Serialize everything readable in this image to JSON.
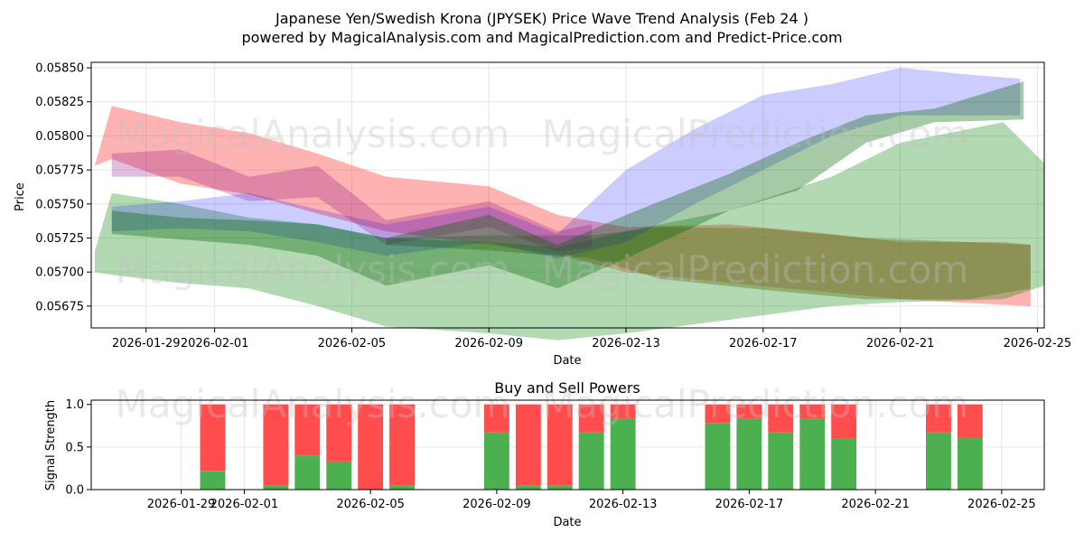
{
  "title": "Japanese Yen/Swedish Krona (JPYSEK) Price Wave Trend Analysis (Feb 24 )",
  "subtitle": "powered by MagicalAnalysis.com and MagicalPrediction.com and Predict-Price.com",
  "watermarks": [
    "MagicalAnalysis.com",
    "MagicalPrediction.com"
  ],
  "colors": {
    "red": "#ff0000",
    "green": "#008000",
    "blue": "#0000ff",
    "purple": "#800080",
    "brown": "#8b7a3a",
    "buy": "#4caf50",
    "sell": "#ff4d4d"
  },
  "chart_data": [
    {
      "type": "area",
      "name": "price-wave",
      "title": "",
      "xlabel": "Date",
      "ylabel": "Price",
      "xlim": [
        "2026-01-27.4",
        "2026-02-25.2"
      ],
      "ylim": [
        0.05659,
        0.05854
      ],
      "yticks": [
        0.05675,
        0.057,
        0.05725,
        0.0575,
        0.05775,
        0.058,
        0.05825,
        0.0585
      ],
      "ytick_labels": [
        "0.05675",
        "0.05700",
        "0.05725",
        "0.05750",
        "0.05775",
        "0.05800",
        "0.05825",
        "0.05850"
      ],
      "xticks": [
        "2026-01-29",
        "2026-02-01",
        "2026-02-05",
        "2026-02-09",
        "2026-02-13",
        "2026-02-17",
        "2026-02-21",
        "2026-02-25"
      ],
      "grid": true,
      "series": [
        {
          "name": "red-wave",
          "color": "#ff0000",
          "opacity": 0.3,
          "x": [
            "2026-01-27.5",
            "2026-01-28",
            "2026-01-30",
            "2026-02-02",
            "2026-02-04",
            "2026-02-06",
            "2026-02-09",
            "2026-02-11",
            "2026-02-13",
            "2026-02-16",
            "2026-02-19",
            "2026-02-21",
            "2026-02-24",
            "2026-02-24.8"
          ],
          "upper": [
            0.05778,
            0.05822,
            0.0581,
            0.05802,
            0.05787,
            0.0577,
            0.05763,
            0.05742,
            0.05733,
            0.05735,
            0.05728,
            0.05722,
            0.05722,
            0.0572
          ],
          "lower": [
            0.05778,
            0.05783,
            0.05765,
            0.05757,
            0.05743,
            0.0573,
            0.0572,
            0.05713,
            0.057,
            0.05692,
            0.05685,
            0.0568,
            0.05676,
            0.05675
          ]
        },
        {
          "name": "brown-band",
          "color": "#8b7a3a",
          "opacity": 0.45,
          "x": [
            "2026-02-06",
            "2026-02-09",
            "2026-02-12",
            "2026-02-14",
            "2026-02-17",
            "2026-02-20",
            "2026-02-23",
            "2026-02-24.8"
          ],
          "upper": [
            0.05725,
            0.05727,
            0.05727,
            0.05733,
            0.05732,
            0.05725,
            0.05722,
            0.0572
          ],
          "lower": [
            0.0572,
            0.05716,
            0.0571,
            0.05695,
            0.05687,
            0.0568,
            0.0568,
            0.05688
          ]
        },
        {
          "name": "green-wave",
          "color": "#008000",
          "opacity": 0.3,
          "x": [
            "2026-01-27.5",
            "2026-01-28",
            "2026-01-30",
            "2026-02-02",
            "2026-02-04",
            "2026-02-06",
            "2026-02-09",
            "2026-02-11",
            "2026-02-13",
            "2026-02-16",
            "2026-02-19",
            "2026-02-21",
            "2026-02-24",
            "2026-02-25.2"
          ],
          "upper": [
            0.05715,
            0.05758,
            0.0575,
            0.0574,
            0.05735,
            0.05725,
            0.05722,
            0.05718,
            0.0573,
            0.05745,
            0.0577,
            0.05795,
            0.0581,
            0.0578
          ],
          "lower": [
            0.057,
            0.05698,
            0.05692,
            0.05688,
            0.05675,
            0.0566,
            0.05655,
            0.0565,
            0.05655,
            0.05665,
            0.05675,
            0.05678,
            0.0568,
            0.0569
          ]
        },
        {
          "name": "blue-wave",
          "color": "#0000ff",
          "opacity": 0.2,
          "x": [
            "2026-01-28",
            "2026-01-30",
            "2026-02-02",
            "2026-02-04",
            "2026-02-06",
            "2026-02-09",
            "2026-02-11",
            "2026-02-13",
            "2026-02-15",
            "2026-02-17",
            "2026-02-19",
            "2026-02-21",
            "2026-02-23",
            "2026-02-24.5"
          ],
          "upper": [
            0.05748,
            0.05752,
            0.05758,
            0.05746,
            0.05735,
            0.05748,
            0.05728,
            0.05775,
            0.05805,
            0.0583,
            0.05838,
            0.0585,
            0.05845,
            0.05842
          ],
          "lower": [
            0.0573,
            0.05732,
            0.0573,
            0.05722,
            0.05712,
            0.05722,
            0.0571,
            0.05722,
            0.0575,
            0.05775,
            0.058,
            0.05815,
            0.05815,
            0.05815
          ]
        },
        {
          "name": "purple-wave",
          "color": "#800080",
          "opacity": 0.25,
          "x": [
            "2026-01-28",
            "2026-01-30",
            "2026-02-02",
            "2026-02-04",
            "2026-02-06",
            "2026-02-09",
            "2026-02-11",
            "2026-02-12"
          ],
          "upper": [
            0.05787,
            0.0579,
            0.0577,
            0.05778,
            0.05738,
            0.05752,
            0.0573,
            0.05735
          ],
          "lower": [
            0.0577,
            0.0577,
            0.05752,
            0.05755,
            0.0572,
            0.05733,
            0.05715,
            0.05718
          ]
        },
        {
          "name": "dark-green-wave",
          "color": "#006400",
          "opacity": 0.35,
          "x": [
            "2026-01-28",
            "2026-01-30",
            "2026-02-02",
            "2026-02-04",
            "2026-02-06",
            "2026-02-09",
            "2026-02-11",
            "2026-02-13",
            "2026-02-16",
            "2026-02-18",
            "2026-02-20",
            "2026-02-22",
            "2026-02-24.6"
          ],
          "upper": [
            0.05745,
            0.0574,
            0.05738,
            0.05735,
            0.05725,
            0.05742,
            0.0572,
            0.05742,
            0.05772,
            0.05795,
            0.05815,
            0.0582,
            0.0584
          ],
          "lower": [
            0.05728,
            0.05724,
            0.0572,
            0.05712,
            0.0569,
            0.05705,
            0.05688,
            0.0571,
            0.05745,
            0.0576,
            0.05795,
            0.0581,
            0.05812
          ]
        }
      ]
    },
    {
      "type": "bar",
      "name": "buy-sell-powers",
      "title": "Buy and Sell Powers",
      "xlabel": "Date",
      "ylabel": "Signal Strength",
      "ylim": [
        0,
        1.05
      ],
      "yticks": [
        0.0,
        0.5,
        1.0
      ],
      "ytick_labels": [
        "0.0",
        "0.5",
        "1.0"
      ],
      "xticks": [
        "2026-01-29",
        "2026-02-01",
        "2026-02-05",
        "2026-02-09",
        "2026-02-13",
        "2026-02-17",
        "2026-02-21",
        "2026-02-25"
      ],
      "series": [
        {
          "name": "Buy",
          "color": "#4caf50"
        },
        {
          "name": "Sell",
          "color": "#ff4d4d"
        }
      ],
      "bars": [
        {
          "date": "2026-01-30",
          "buy": 0.22
        },
        {
          "date": "2026-02-02",
          "buy": 0.05
        },
        {
          "date": "2026-02-03",
          "buy": 0.4
        },
        {
          "date": "2026-02-04",
          "buy": 0.33
        },
        {
          "date": "2026-02-05",
          "buy": 0.0
        },
        {
          "date": "2026-02-06",
          "buy": 0.05
        },
        {
          "date": "2026-02-09",
          "buy": 0.67
        },
        {
          "date": "2026-02-10",
          "buy": 0.05
        },
        {
          "date": "2026-02-11",
          "buy": 0.05
        },
        {
          "date": "2026-02-12",
          "buy": 0.67
        },
        {
          "date": "2026-02-13",
          "buy": 0.83
        },
        {
          "date": "2026-02-16",
          "buy": 0.78
        },
        {
          "date": "2026-02-17",
          "buy": 0.83
        },
        {
          "date": "2026-02-18",
          "buy": 0.67
        },
        {
          "date": "2026-02-19",
          "buy": 0.83
        },
        {
          "date": "2026-02-20",
          "buy": 0.6
        },
        {
          "date": "2026-02-23",
          "buy": 0.67
        },
        {
          "date": "2026-02-24",
          "buy": 0.61
        }
      ]
    }
  ]
}
